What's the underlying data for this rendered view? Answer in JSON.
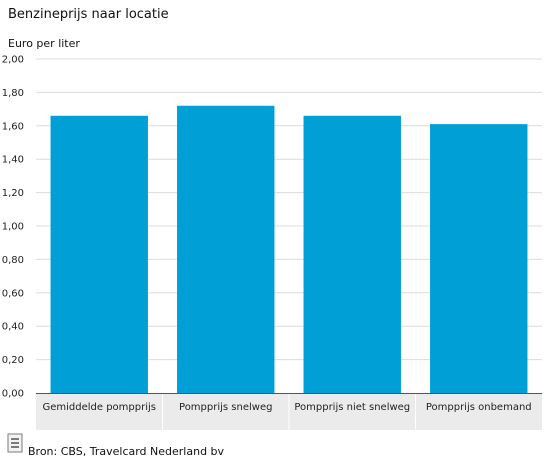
{
  "chart_data": {
    "type": "bar",
    "title": "Benzineprijs naar locatie",
    "ylabel": "Euro per liter",
    "xlabel": "",
    "categories": [
      "Gemiddelde pompprijs",
      "Pompprijs snelweg",
      "Pompprijs niet snelweg",
      "Pompprijs onbemand"
    ],
    "values": [
      1.66,
      1.72,
      1.66,
      1.61
    ],
    "ylim": [
      0,
      2
    ],
    "yticks": [
      "0,00",
      "0,20",
      "0,40",
      "0,60",
      "0,80",
      "1,00",
      "1,20",
      "1,40",
      "1,60",
      "1,80",
      "2,00"
    ],
    "grid": true,
    "legend": "none",
    "bar_color": "#009fd6"
  },
  "source": "Bron: CBS, Travelcard Nederland bv",
  "icons": {
    "source": "document-icon"
  }
}
